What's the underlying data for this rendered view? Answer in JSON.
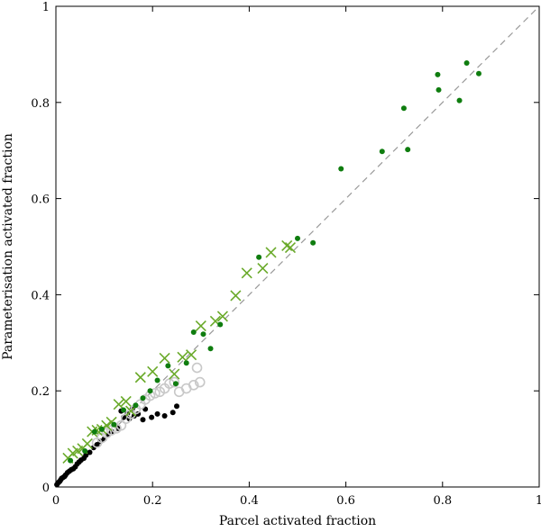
{
  "chart_data": {
    "type": "scatter",
    "title": "",
    "xlabel": "Parcel activated fraction",
    "ylabel": "Parameterisation activated fraction",
    "xlim": [
      0,
      1
    ],
    "ylim": [
      0,
      1
    ],
    "grid": false,
    "legend": "none",
    "x_ticks": [
      "0",
      "0.2",
      "0.4",
      "0.6",
      "0.8",
      "1"
    ],
    "y_ticks": [
      "0",
      "0.2",
      "0.4",
      "0.6",
      "0.8",
      "1"
    ],
    "reference_line": {
      "style": "dashed",
      "color": "#999999",
      "from": [
        0,
        0
      ],
      "to": [
        1,
        1
      ]
    },
    "series": [
      {
        "marker": "filled-circle",
        "color": "#000000",
        "points": [
          [
            0.002,
            0.005
          ],
          [
            0.004,
            0.008
          ],
          [
            0.006,
            0.01
          ],
          [
            0.008,
            0.012
          ],
          [
            0.01,
            0.015
          ],
          [
            0.012,
            0.018
          ],
          [
            0.015,
            0.02
          ],
          [
            0.018,
            0.022
          ],
          [
            0.02,
            0.025
          ],
          [
            0.024,
            0.03
          ],
          [
            0.028,
            0.033
          ],
          [
            0.032,
            0.036
          ],
          [
            0.036,
            0.038
          ],
          [
            0.04,
            0.042
          ],
          [
            0.044,
            0.048
          ],
          [
            0.048,
            0.052
          ],
          [
            0.052,
            0.056
          ],
          [
            0.058,
            0.06
          ],
          [
            0.062,
            0.066
          ],
          [
            0.07,
            0.072
          ],
          [
            0.078,
            0.082
          ],
          [
            0.085,
            0.088
          ],
          [
            0.092,
            0.095
          ],
          [
            0.1,
            0.1
          ],
          [
            0.108,
            0.108
          ],
          [
            0.115,
            0.115
          ],
          [
            0.128,
            0.122
          ],
          [
            0.135,
            0.158
          ],
          [
            0.14,
            0.145
          ],
          [
            0.148,
            0.152
          ],
          [
            0.152,
            0.142
          ],
          [
            0.158,
            0.162
          ],
          [
            0.162,
            0.148
          ],
          [
            0.17,
            0.152
          ],
          [
            0.18,
            0.14
          ],
          [
            0.185,
            0.162
          ],
          [
            0.198,
            0.145
          ],
          [
            0.21,
            0.152
          ],
          [
            0.225,
            0.148
          ],
          [
            0.242,
            0.155
          ],
          [
            0.25,
            0.168
          ]
        ]
      },
      {
        "marker": "open-circle",
        "color": "#c8c8c8",
        "points": [
          [
            0.085,
            0.092
          ],
          [
            0.095,
            0.102
          ],
          [
            0.105,
            0.112
          ],
          [
            0.115,
            0.118
          ],
          [
            0.125,
            0.122
          ],
          [
            0.135,
            0.128
          ],
          [
            0.145,
            0.142
          ],
          [
            0.155,
            0.152
          ],
          [
            0.165,
            0.162
          ],
          [
            0.175,
            0.172
          ],
          [
            0.185,
            0.182
          ],
          [
            0.195,
            0.19
          ],
          [
            0.205,
            0.195
          ],
          [
            0.215,
            0.198
          ],
          [
            0.225,
            0.205
          ],
          [
            0.235,
            0.215
          ],
          [
            0.245,
            0.218
          ],
          [
            0.255,
            0.198
          ],
          [
            0.27,
            0.205
          ],
          [
            0.285,
            0.212
          ],
          [
            0.298,
            0.218
          ],
          [
            0.292,
            0.248
          ]
        ]
      },
      {
        "marker": "cross",
        "color": "#6aaa2a",
        "points": [
          [
            0.025,
            0.06
          ],
          [
            0.035,
            0.07
          ],
          [
            0.045,
            0.075
          ],
          [
            0.055,
            0.08
          ],
          [
            0.065,
            0.09
          ],
          [
            0.075,
            0.115
          ],
          [
            0.085,
            0.118
          ],
          [
            0.095,
            0.12
          ],
          [
            0.105,
            0.128
          ],
          [
            0.115,
            0.135
          ],
          [
            0.13,
            0.172
          ],
          [
            0.145,
            0.178
          ],
          [
            0.155,
            0.158
          ],
          [
            0.175,
            0.228
          ],
          [
            0.2,
            0.24
          ],
          [
            0.225,
            0.268
          ],
          [
            0.245,
            0.235
          ],
          [
            0.262,
            0.27
          ],
          [
            0.28,
            0.275
          ],
          [
            0.3,
            0.335
          ],
          [
            0.33,
            0.345
          ],
          [
            0.345,
            0.355
          ],
          [
            0.372,
            0.398
          ],
          [
            0.395,
            0.445
          ],
          [
            0.428,
            0.455
          ],
          [
            0.445,
            0.488
          ],
          [
            0.478,
            0.502
          ],
          [
            0.485,
            0.498
          ]
        ]
      },
      {
        "marker": "filled-circle",
        "color": "#0f7d0f",
        "points": [
          [
            0.03,
            0.055
          ],
          [
            0.06,
            0.075
          ],
          [
            0.08,
            0.115
          ],
          [
            0.095,
            0.12
          ],
          [
            0.12,
            0.13
          ],
          [
            0.14,
            0.16
          ],
          [
            0.165,
            0.17
          ],
          [
            0.18,
            0.185
          ],
          [
            0.195,
            0.2
          ],
          [
            0.21,
            0.222
          ],
          [
            0.232,
            0.252
          ],
          [
            0.248,
            0.215
          ],
          [
            0.27,
            0.258
          ],
          [
            0.285,
            0.322
          ],
          [
            0.305,
            0.318
          ],
          [
            0.32,
            0.288
          ],
          [
            0.34,
            0.338
          ],
          [
            0.42,
            0.478
          ],
          [
            0.5,
            0.517
          ],
          [
            0.532,
            0.508
          ],
          [
            0.59,
            0.662
          ],
          [
            0.675,
            0.698
          ],
          [
            0.72,
            0.788
          ],
          [
            0.728,
            0.702
          ],
          [
            0.79,
            0.858
          ],
          [
            0.792,
            0.826
          ],
          [
            0.835,
            0.804
          ],
          [
            0.85,
            0.882
          ],
          [
            0.875,
            0.86
          ]
        ]
      }
    ]
  }
}
